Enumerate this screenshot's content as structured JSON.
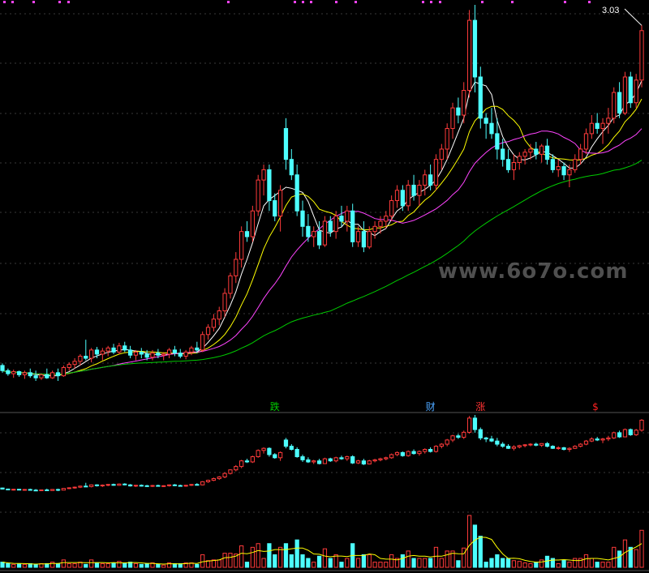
{
  "chart_data": [
    {
      "type": "candlestick",
      "panel": "price",
      "price_label": "3.03",
      "watermark": "www.6o7o.com",
      "markers": [
        {
          "text": "跌",
          "index": 49,
          "color": "#00cc00"
        },
        {
          "text": "财",
          "index": 77,
          "color": "#4da6ff"
        },
        {
          "text": "涨",
          "index": 86,
          "color": "#ff3333"
        },
        {
          "text": "$",
          "index": 107,
          "color": "#ff2222"
        }
      ],
      "ohlc": [
        [
          1.05,
          1.07,
          0.98,
          1.0
        ],
        [
          1.0,
          1.02,
          0.95,
          0.97
        ],
        [
          0.97,
          1.01,
          0.93,
          0.99
        ],
        [
          0.99,
          1.0,
          0.94,
          0.96
        ],
        [
          0.96,
          1.0,
          0.92,
          0.98
        ],
        [
          0.98,
          1.02,
          0.93,
          0.95
        ],
        [
          0.95,
          1.0,
          0.9,
          0.93
        ],
        [
          0.93,
          0.97,
          0.91,
          0.96
        ],
        [
          0.96,
          1.02,
          0.92,
          0.93
        ],
        [
          0.93,
          1.0,
          0.92,
          0.98
        ],
        [
          0.98,
          1.02,
          0.9,
          0.95
        ],
        [
          0.95,
          1.05,
          0.94,
          1.03
        ],
        [
          1.03,
          1.08,
          1.0,
          1.06
        ],
        [
          1.06,
          1.12,
          1.02,
          1.09
        ],
        [
          1.09,
          1.16,
          1.05,
          1.14
        ],
        [
          1.14,
          1.3,
          1.1,
          1.12
        ],
        [
          1.12,
          1.22,
          1.08,
          1.2
        ],
        [
          1.2,
          1.23,
          1.12,
          1.16
        ],
        [
          1.16,
          1.22,
          1.1,
          1.19
        ],
        [
          1.19,
          1.24,
          1.14,
          1.22
        ],
        [
          1.22,
          1.26,
          1.16,
          1.18
        ],
        [
          1.18,
          1.27,
          1.16,
          1.24
        ],
        [
          1.24,
          1.28,
          1.18,
          1.2
        ],
        [
          1.2,
          1.24,
          1.12,
          1.15
        ],
        [
          1.15,
          1.2,
          1.1,
          1.18
        ],
        [
          1.18,
          1.22,
          1.12,
          1.16
        ],
        [
          1.16,
          1.2,
          1.1,
          1.13
        ],
        [
          1.13,
          1.2,
          1.1,
          1.17
        ],
        [
          1.17,
          1.21,
          1.12,
          1.15
        ],
        [
          1.15,
          1.18,
          1.1,
          1.16
        ],
        [
          1.16,
          1.22,
          1.12,
          1.2
        ],
        [
          1.2,
          1.24,
          1.14,
          1.17
        ],
        [
          1.17,
          1.21,
          1.12,
          1.14
        ],
        [
          1.14,
          1.2,
          1.11,
          1.18
        ],
        [
          1.18,
          1.24,
          1.15,
          1.22
        ],
        [
          1.22,
          1.28,
          1.17,
          1.2
        ],
        [
          1.2,
          1.38,
          1.18,
          1.35
        ],
        [
          1.35,
          1.45,
          1.3,
          1.42
        ],
        [
          1.42,
          1.55,
          1.38,
          1.5
        ],
        [
          1.5,
          1.62,
          1.44,
          1.58
        ],
        [
          1.58,
          1.8,
          1.52,
          1.75
        ],
        [
          1.75,
          1.95,
          1.7,
          1.92
        ],
        [
          1.92,
          2.15,
          1.85,
          2.08
        ],
        [
          2.08,
          2.4,
          2.0,
          2.35
        ],
        [
          2.35,
          2.45,
          2.25,
          2.3
        ],
        [
          2.3,
          2.6,
          2.25,
          2.55
        ],
        [
          2.55,
          2.9,
          2.5,
          2.85
        ],
        [
          2.85,
          3.0,
          2.7,
          2.95
        ],
        [
          2.95,
          3.0,
          2.55,
          2.65
        ],
        [
          2.65,
          2.72,
          2.45,
          2.5
        ],
        [
          2.5,
          2.8,
          2.35,
          2.75
        ],
        [
          3.35,
          3.45,
          2.95,
          3.05
        ],
        [
          3.05,
          3.15,
          2.85,
          2.9
        ],
        [
          2.9,
          3.0,
          2.5,
          2.55
        ],
        [
          2.55,
          2.65,
          2.3,
          2.4
        ],
        [
          2.4,
          2.52,
          2.25,
          2.3
        ],
        [
          2.3,
          2.4,
          2.2,
          2.35
        ],
        [
          2.35,
          2.45,
          2.18,
          2.22
        ],
        [
          2.22,
          2.5,
          2.2,
          2.45
        ],
        [
          2.45,
          2.5,
          2.3,
          2.35
        ],
        [
          2.35,
          2.55,
          2.28,
          2.5
        ],
        [
          2.5,
          2.6,
          2.4,
          2.45
        ],
        [
          2.45,
          2.6,
          2.35,
          2.55
        ],
        [
          2.55,
          2.62,
          2.2,
          2.25
        ],
        [
          2.25,
          2.4,
          2.2,
          2.35
        ],
        [
          2.35,
          2.45,
          2.15,
          2.2
        ],
        [
          2.2,
          2.4,
          2.18,
          2.35
        ],
        [
          2.35,
          2.45,
          2.28,
          2.4
        ],
        [
          2.4,
          2.5,
          2.33,
          2.45
        ],
        [
          2.45,
          2.55,
          2.38,
          2.5
        ],
        [
          2.5,
          2.7,
          2.45,
          2.65
        ],
        [
          2.65,
          2.8,
          2.58,
          2.75
        ],
        [
          2.75,
          2.8,
          2.55,
          2.6
        ],
        [
          2.6,
          2.85,
          2.55,
          2.8
        ],
        [
          2.8,
          2.9,
          2.65,
          2.7
        ],
        [
          2.7,
          2.85,
          2.6,
          2.8
        ],
        [
          2.8,
          2.95,
          2.7,
          2.9
        ],
        [
          2.9,
          3.0,
          2.75,
          2.8
        ],
        [
          2.8,
          3.1,
          2.75,
          3.05
        ],
        [
          3.05,
          3.2,
          2.95,
          3.15
        ],
        [
          3.15,
          3.4,
          3.05,
          3.35
        ],
        [
          3.35,
          3.6,
          3.25,
          3.55
        ],
        [
          3.55,
          3.65,
          3.4,
          3.48
        ],
        [
          3.48,
          3.8,
          3.4,
          3.72
        ],
        [
          3.72,
          4.5,
          3.65,
          4.4
        ],
        [
          4.4,
          4.55,
          3.7,
          3.85
        ],
        [
          3.85,
          3.95,
          3.35,
          3.45
        ],
        [
          3.45,
          3.5,
          3.25,
          3.4
        ],
        [
          3.4,
          3.55,
          3.25,
          3.3
        ],
        [
          3.3,
          3.45,
          3.05,
          3.15
        ],
        [
          3.15,
          3.25,
          2.98,
          3.05
        ],
        [
          3.05,
          3.15,
          2.92,
          2.95
        ],
        [
          2.95,
          3.1,
          2.85,
          3.02
        ],
        [
          3.02,
          3.12,
          2.95,
          3.08
        ],
        [
          3.08,
          3.15,
          3.0,
          3.12
        ],
        [
          3.12,
          3.2,
          3.05,
          3.15
        ],
        [
          3.15,
          3.22,
          3.05,
          3.1
        ],
        [
          3.1,
          3.2,
          3.02,
          3.18
        ],
        [
          3.18,
          3.25,
          3.0,
          3.05
        ],
        [
          3.05,
          3.1,
          2.92,
          2.95
        ],
        [
          2.95,
          3.05,
          2.88,
          2.98
        ],
        [
          2.98,
          3.02,
          2.85,
          2.9
        ],
        [
          2.9,
          3.0,
          2.78,
          2.95
        ],
        [
          2.95,
          3.1,
          2.92,
          3.05
        ],
        [
          3.05,
          3.2,
          3.0,
          3.15
        ],
        [
          3.15,
          3.35,
          3.1,
          3.3
        ],
        [
          3.3,
          3.48,
          3.25,
          3.4
        ],
        [
          3.4,
          3.5,
          3.3,
          3.35
        ],
        [
          3.35,
          3.45,
          3.2,
          3.4
        ],
        [
          3.4,
          3.55,
          3.3,
          3.45
        ],
        [
          3.45,
          3.75,
          3.4,
          3.7
        ],
        [
          3.7,
          3.8,
          3.45,
          3.5
        ],
        [
          3.5,
          3.9,
          3.48,
          3.85
        ],
        [
          3.85,
          3.9,
          3.55,
          3.6
        ],
        [
          3.6,
          3.88,
          3.55,
          3.82
        ],
        [
          3.82,
          4.35,
          3.75,
          4.3
        ]
      ]
    },
    {
      "type": "candlestick",
      "panel": "indicator"
    },
    {
      "type": "bar",
      "panel": "volume"
    }
  ]
}
